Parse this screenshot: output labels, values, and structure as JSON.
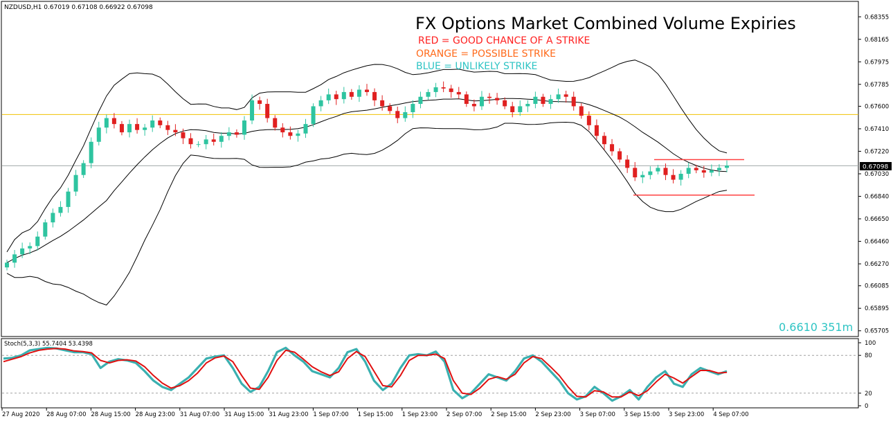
{
  "header": {
    "symbol_line": "NZDUSD,H1  0.67019 0.67108 0.66922 0.67098"
  },
  "annotations": {
    "title": "FX Options Market Combined Volume Expiries",
    "legend": [
      {
        "text": "RED = GOOD CHANCE OF A STRIKE",
        "color": "#ff2020"
      },
      {
        "text": "ORANGE = POSSIBLE STRIKE",
        "color": "#ff6a1a"
      },
      {
        "text": "BLUE = UNLIKELY STRIKE",
        "color": "#2ec4c4"
      }
    ],
    "expiry_note": "0.6610 351m",
    "expiry_note_color": "#2ec4c4"
  },
  "price_axis": {
    "ticks": [
      "0.68355",
      "0.68165",
      "0.67975",
      "0.67785",
      "0.67600",
      "0.67410",
      "0.67220",
      "0.67030",
      "0.66840",
      "0.66650",
      "0.66460",
      "0.66270",
      "0.66085",
      "0.65895",
      "0.65705"
    ],
    "current_price": "0.67098"
  },
  "stoch": {
    "label": "Stoch(5,3,3) 55.7404 53.4398",
    "axis_ticks": [
      "100",
      "80",
      "20",
      "0"
    ]
  },
  "time_axis": {
    "ticks": [
      "27 Aug 2020",
      "28 Aug 07:00",
      "28 Aug 15:00",
      "28 Aug 23:00",
      "31 Aug 07:00",
      "31 Aug 15:00",
      "31 Aug 23:00",
      "1 Sep 07:00",
      "1 Sep 15:00",
      "1 Sep 23:00",
      "2 Sep 07:00",
      "2 Sep 15:00",
      "2 Sep 23:00",
      "3 Sep 07:00",
      "3 Sep 15:00",
      "3 Sep 23:00",
      "4 Sep 07:00"
    ]
  },
  "chart_data": {
    "type": "candlestick",
    "symbol": "NZDUSD",
    "timeframe": "H1",
    "ohlc_last": {
      "open": 0.67019,
      "high": 0.67108,
      "low": 0.66922,
      "close": 0.67098
    },
    "horizontal_lines": [
      {
        "price": 0.6753,
        "color": "#f0c000"
      },
      {
        "price": 0.67098,
        "color": "#a0a8a8"
      }
    ],
    "strike_markers": [
      {
        "price": 0.6715,
        "color": "#ff4040"
      },
      {
        "price": 0.6685,
        "color": "#ff4040"
      }
    ],
    "close_series": [
      0.6628,
      0.6635,
      0.664,
      0.6642,
      0.665,
      0.6662,
      0.667,
      0.6675,
      0.6688,
      0.6702,
      0.6712,
      0.673,
      0.6742,
      0.675,
      0.6745,
      0.6738,
      0.6745,
      0.674,
      0.6742,
      0.6748,
      0.6744,
      0.674,
      0.6738,
      0.6733,
      0.6728,
      0.6728,
      0.6732,
      0.673,
      0.6735,
      0.6738,
      0.6736,
      0.6748,
      0.6765,
      0.6762,
      0.675,
      0.6742,
      0.6738,
      0.6735,
      0.6737,
      0.6745,
      0.676,
      0.6765,
      0.677,
      0.6766,
      0.6772,
      0.6768,
      0.6774,
      0.6772,
      0.6765,
      0.676,
      0.6756,
      0.675,
      0.6755,
      0.6762,
      0.6768,
      0.6772,
      0.6776,
      0.6775,
      0.6772,
      0.677,
      0.6762,
      0.676,
      0.6768,
      0.6767,
      0.6765,
      0.676,
      0.6755,
      0.676,
      0.6762,
      0.6768,
      0.6762,
      0.6766,
      0.677,
      0.6768,
      0.676,
      0.6752,
      0.6744,
      0.6735,
      0.6728,
      0.6722,
      0.6715,
      0.6708,
      0.67,
      0.6702,
      0.6705,
      0.6708,
      0.6702,
      0.6698,
      0.6703,
      0.6708,
      0.6706,
      0.6704,
      0.6706,
      0.6708,
      0.671
    ],
    "stoch_k": [
      75,
      76,
      80,
      88,
      90,
      92,
      91,
      88,
      85,
      85,
      82,
      60,
      70,
      74,
      72,
      68,
      55,
      40,
      30,
      25,
      35,
      45,
      60,
      75,
      78,
      80,
      60,
      35,
      22,
      30,
      55,
      85,
      92,
      80,
      70,
      55,
      50,
      45,
      60,
      85,
      90,
      70,
      40,
      25,
      35,
      60,
      80,
      82,
      80,
      86,
      70,
      25,
      12,
      20,
      35,
      50,
      45,
      40,
      55,
      75,
      80,
      70,
      55,
      40,
      20,
      10,
      15,
      30,
      20,
      8,
      15,
      25,
      10,
      30,
      45,
      55,
      35,
      30,
      50,
      60,
      55,
      50,
      55
    ],
    "stoch_d": [
      70,
      74,
      78,
      84,
      88,
      90,
      91,
      90,
      87,
      86,
      84,
      72,
      68,
      72,
      73,
      71,
      62,
      48,
      36,
      28,
      32,
      40,
      52,
      68,
      76,
      79,
      70,
      48,
      28,
      26,
      45,
      72,
      88,
      85,
      74,
      62,
      54,
      48,
      54,
      75,
      86,
      78,
      55,
      32,
      30,
      48,
      72,
      80,
      80,
      82,
      75,
      40,
      20,
      18,
      28,
      42,
      46,
      42,
      50,
      68,
      78,
      75,
      62,
      48,
      30,
      15,
      14,
      24,
      22,
      14,
      14,
      22,
      16,
      24,
      38,
      50,
      44,
      36,
      46,
      56,
      56,
      52,
      53
    ],
    "stoch_k_color": "#3ab0b0",
    "stoch_d_color": "#e01010",
    "bull_color": "#2ec4a0",
    "bear_color": "#e02020"
  }
}
